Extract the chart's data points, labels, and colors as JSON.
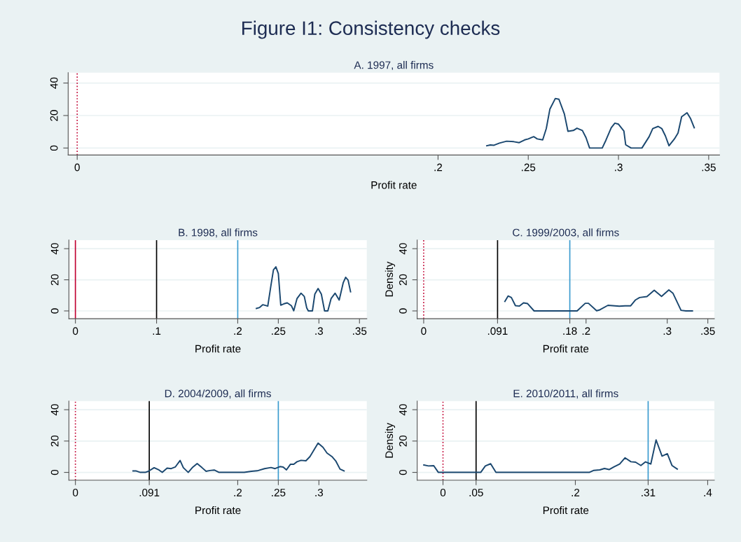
{
  "chart_data": [
    {
      "type": "line",
      "title": "Figure I1: Consistency checks",
      "subtitle": "A. 1997, all firms",
      "xlabel": "Profit rate",
      "color": "#1a476f",
      "grid": "y",
      "x": [
        0.227,
        0.229,
        0.231,
        0.234,
        0.238,
        0.242,
        0.245,
        0.248,
        0.25,
        0.253,
        0.255,
        0.258,
        0.26,
        0.262,
        0.265,
        0.267,
        0.27,
        0.272,
        0.275,
        0.277,
        0.28,
        0.282,
        0.284,
        0.291,
        0.293,
        0.296,
        0.298,
        0.3,
        0.303,
        0.304,
        0.307,
        0.313,
        0.317,
        0.319,
        0.322,
        0.324,
        0.326,
        0.328,
        0.331,
        0.333,
        0.335,
        0.338,
        0.34,
        0.342
      ],
      "values": [
        1.4,
        1.9,
        1.7,
        3,
        4.2,
        3.9,
        3.3,
        5,
        5.6,
        7,
        5.6,
        5,
        12,
        24,
        30.5,
        30,
        21,
        10.3,
        10.8,
        12.2,
        10.8,
        6.4,
        0,
        0,
        4.7,
        12.5,
        15.3,
        14.7,
        10.5,
        2,
        0,
        0,
        7,
        12,
        13.3,
        12,
        7.5,
        1.4,
        5.6,
        9.2,
        19.2,
        21.7,
        18,
        12.5
      ],
      "xlim": [
        -0.005,
        0.356
      ],
      "ylim": [
        -4.3,
        46.4
      ],
      "xticks": [
        0,
        {
          "value": 0.2,
          "label": ".2"
        },
        {
          "value": 0.25,
          "label": ".25"
        },
        {
          "value": 0.3,
          "label": ".3"
        },
        {
          "value": 0.35,
          "label": ".35"
        }
      ],
      "yticks": [
        0,
        20,
        40
      ],
      "ref_lines": [
        {
          "axis": "x",
          "value": 0,
          "color": "#c10534",
          "line_style": "dotted"
        }
      ]
    },
    {
      "type": "line",
      "title": "B. 1998, all firms",
      "xlabel": "Profit rate",
      "color": "#1a476f",
      "grid": "y",
      "x": [
        0.223,
        0.227,
        0.231,
        0.237,
        0.241,
        0.244,
        0.247,
        0.25,
        0.253,
        0.257,
        0.261,
        0.266,
        0.269,
        0.273,
        0.278,
        0.282,
        0.285,
        0.287,
        0.292,
        0.295,
        0.299,
        0.303,
        0.307,
        0.311,
        0.315,
        0.32,
        0.325,
        0.33,
        0.333,
        0.336,
        0.339
      ],
      "values": [
        1.6,
        2.2,
        4,
        3.1,
        16.7,
        26.4,
        28.3,
        24,
        3.7,
        4.6,
        5.2,
        3.4,
        0.1,
        7.9,
        11.4,
        9.3,
        1.9,
        0,
        0,
        10.8,
        14.4,
        10.8,
        0,
        0,
        7.9,
        11.4,
        7,
        18.2,
        21.6,
        19.7,
        12.3
      ],
      "xlim": [
        -0.008,
        0.359
      ],
      "ylim": [
        -5,
        45.5
      ],
      "xticks": [
        0,
        {
          "value": 0.1,
          "label": ".1"
        },
        {
          "value": 0.2,
          "label": ".2"
        },
        {
          "value": 0.25,
          "label": ".25"
        },
        {
          "value": 0.3,
          "label": ".3"
        },
        {
          "value": 0.35,
          "label": ".35"
        }
      ],
      "yticks": [
        0,
        20,
        40
      ],
      "ref_lines": [
        {
          "axis": "x",
          "value": 0,
          "color": "#c10534",
          "line_style": "solid"
        },
        {
          "axis": "x",
          "value": 0.1,
          "color": "#000000",
          "line_style": "solid"
        },
        {
          "axis": "x",
          "value": 0.2,
          "color": "#3a9bcf",
          "line_style": "solid"
        }
      ]
    },
    {
      "type": "line",
      "title": "C. 1999/2003, all firms",
      "xlabel": "Profit rate",
      "ylabel": "Density",
      "color": "#1a476f",
      "grid": "y",
      "x": [
        0.1,
        0.104,
        0.108,
        0.113,
        0.118,
        0.123,
        0.128,
        0.136,
        0.18,
        0.189,
        0.199,
        0.203,
        0.213,
        0.217,
        0.227,
        0.241,
        0.248,
        0.255,
        0.261,
        0.266,
        0.275,
        0.284,
        0.293,
        0.302,
        0.307,
        0.317,
        0.323,
        0.331
      ],
      "values": [
        6.1,
        9.6,
        8.6,
        3.4,
        3.1,
        5.2,
        4.7,
        0,
        0,
        0,
        4.9,
        4.9,
        0.1,
        0.7,
        3.6,
        3,
        3.3,
        3.3,
        7.1,
        8.6,
        9.2,
        13.3,
        9.3,
        13.5,
        11.4,
        0.4,
        0,
        0
      ],
      "xlim": [
        -0.008,
        0.358
      ],
      "ylim": [
        -5,
        45.5
      ],
      "xticks": [
        0,
        {
          "value": 0.091,
          "label": ".091"
        },
        {
          "value": 0.18,
          "label": ".18"
        },
        {
          "value": 0.2,
          "label": ".2"
        },
        {
          "value": 0.3,
          "label": ".3"
        },
        {
          "value": 0.35,
          "label": ".35"
        }
      ],
      "yticks": [
        0,
        20,
        40
      ],
      "ref_lines": [
        {
          "axis": "x",
          "value": 0,
          "color": "#c10534",
          "line_style": "dotted"
        },
        {
          "axis": "x",
          "value": 0.091,
          "color": "#000000",
          "line_style": "solid"
        },
        {
          "axis": "x",
          "value": 0.18,
          "color": "#3a9bcf",
          "line_style": "solid"
        }
      ]
    },
    {
      "type": "line",
      "title": "D. 2004/2009, all firms",
      "xlabel": "Profit rate",
      "color": "#1a476f",
      "grid": "y",
      "x": [
        0.071,
        0.075,
        0.08,
        0.086,
        0.09,
        0.097,
        0.103,
        0.107,
        0.113,
        0.118,
        0.123,
        0.129,
        0.133,
        0.139,
        0.144,
        0.15,
        0.156,
        0.161,
        0.166,
        0.171,
        0.177,
        0.208,
        0.217,
        0.224,
        0.233,
        0.241,
        0.246,
        0.252,
        0.256,
        0.26,
        0.265,
        0.269,
        0.273,
        0.278,
        0.284,
        0.289,
        0.299,
        0.305,
        0.31,
        0.316,
        0.321,
        0.326,
        0.331
      ],
      "values": [
        0.9,
        0.9,
        0,
        0,
        0.7,
        3,
        1.5,
        0,
        2.7,
        2.4,
        3.4,
        7.6,
        3,
        0,
        3,
        5.6,
        3,
        0.7,
        1.2,
        1.5,
        0,
        0,
        0.7,
        1,
        2.4,
        3.1,
        2.4,
        3.7,
        3.4,
        1.6,
        5.2,
        5.2,
        6.8,
        7.7,
        7.4,
        10.1,
        18.7,
        16,
        12.3,
        10.1,
        7.1,
        2.1,
        0.9
      ],
      "xlim": [
        -0.008,
        0.359
      ],
      "ylim": [
        -5,
        45.5
      ],
      "xticks": [
        0,
        {
          "value": 0.091,
          "label": ".091"
        },
        {
          "value": 0.2,
          "label": ".2"
        },
        {
          "value": 0.25,
          "label": ".25"
        },
        {
          "value": 0.3,
          "label": ".3"
        }
      ],
      "yticks": [
        0,
        20,
        40
      ],
      "ref_lines": [
        {
          "axis": "x",
          "value": 0,
          "color": "#c10534",
          "line_style": "dotted"
        },
        {
          "axis": "x",
          "value": 0.091,
          "color": "#000000",
          "line_style": "solid"
        },
        {
          "axis": "x",
          "value": 0.25,
          "color": "#3a9bcf",
          "line_style": "solid"
        }
      ]
    },
    {
      "type": "line",
      "title": "E. 2010/2011, all firms",
      "xlabel": "Profit rate",
      "ylabel": "Density",
      "color": "#1a476f",
      "grid": "y",
      "x": [
        -0.029,
        -0.022,
        -0.014,
        -0.007,
        0.057,
        0.064,
        0.072,
        0.08,
        0.221,
        0.228,
        0.237,
        0.244,
        0.251,
        0.258,
        0.267,
        0.275,
        0.284,
        0.291,
        0.299,
        0.306,
        0.314,
        0.322,
        0.331,
        0.339,
        0.346,
        0.354
      ],
      "values": [
        4.7,
        4.1,
        4.3,
        0,
        0,
        4.1,
        5.5,
        0,
        0,
        1.3,
        1.6,
        2.5,
        1.8,
        3.4,
        5.3,
        9.3,
        6.8,
        6.5,
        4.4,
        6.7,
        5.3,
        20.7,
        10.4,
        11.9,
        4.4,
        2.1
      ],
      "xlim": [
        -0.039,
        0.41
      ],
      "ylim": [
        -5,
        45.5
      ],
      "xticks": [
        0,
        {
          "value": 0.05,
          "label": ".05"
        },
        {
          "value": 0.2,
          "label": ".2"
        },
        {
          "value": 0.31,
          "label": ".31"
        },
        {
          "value": 0.4,
          "label": ".4"
        }
      ],
      "yticks": [
        0,
        20,
        40
      ],
      "ref_lines": [
        {
          "axis": "x",
          "value": 0,
          "color": "#c10534",
          "line_style": "dotted"
        },
        {
          "axis": "x",
          "value": 0.05,
          "color": "#000000",
          "line_style": "solid"
        },
        {
          "axis": "x",
          "value": 0.31,
          "color": "#3a9bcf",
          "line_style": "solid"
        }
      ]
    }
  ]
}
